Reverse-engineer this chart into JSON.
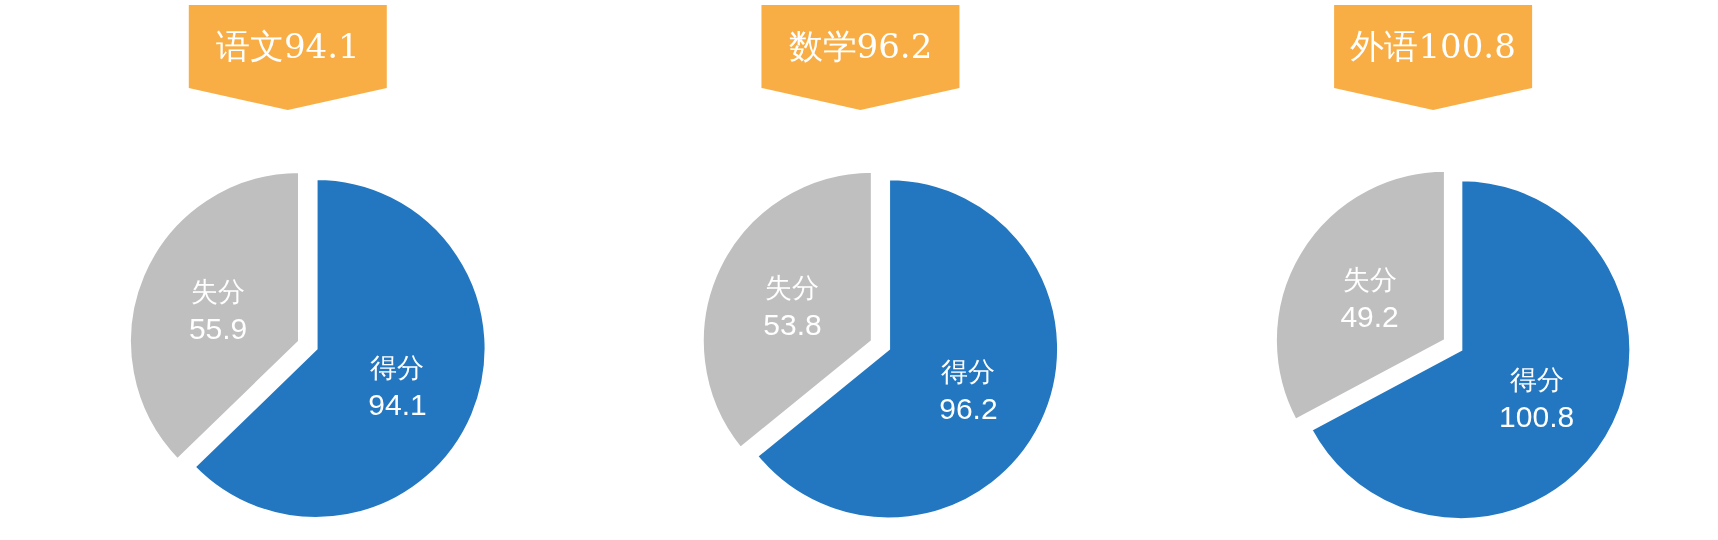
{
  "chart_data": [
    {
      "type": "pie",
      "title": "语文94.1",
      "categories": [
        "得分",
        "失分"
      ],
      "values": [
        94.1,
        55.9
      ],
      "colors": [
        "#2277c0",
        "#bfbfbf"
      ],
      "data_labels": true
    },
    {
      "type": "pie",
      "title": "数学96.2",
      "categories": [
        "得分",
        "失分"
      ],
      "values": [
        96.2,
        53.8
      ],
      "colors": [
        "#2277c0",
        "#bfbfbf"
      ],
      "data_labels": true
    },
    {
      "type": "pie",
      "title": "外语100.8",
      "categories": [
        "得分",
        "失分"
      ],
      "values": [
        100.8,
        49.2
      ],
      "colors": [
        "#2277c0",
        "#bfbfbf"
      ],
      "data_labels": true
    }
  ]
}
